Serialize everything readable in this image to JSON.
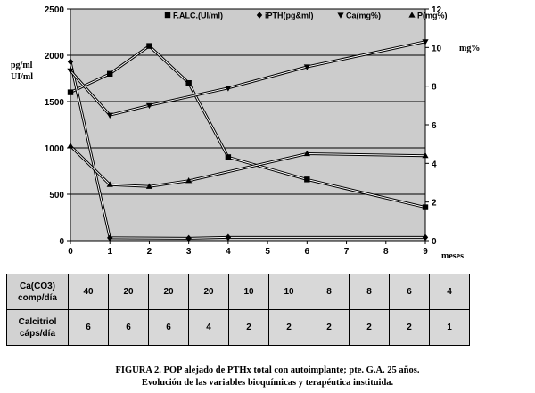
{
  "chart_data": {
    "type": "line",
    "x": [
      0,
      1,
      2,
      3,
      4,
      6,
      9
    ],
    "x_ticks": [
      "0",
      "1",
      "2",
      "3",
      "4",
      "5",
      "6",
      "7",
      "8",
      "9"
    ],
    "xlabel": "meses",
    "xlim": [
      0,
      9
    ],
    "ylabel_left": [
      "pg/ml",
      "UI/ml"
    ],
    "ylabel_right": "mg%",
    "ylim_left": [
      0,
      2500
    ],
    "ylim_right": [
      0,
      12
    ],
    "y_ticks_left": [
      "0",
      "500",
      "1000",
      "1500",
      "2000",
      "2500"
    ],
    "y_ticks_right": [
      "0",
      "2",
      "4",
      "6",
      "8",
      "10",
      "12"
    ],
    "legend_position": "top-right",
    "grid": "horizontal",
    "series": [
      {
        "name": "F.ALC.(UI/ml)",
        "axis": "left",
        "marker": "square",
        "x": [
          0,
          1,
          2,
          3,
          4,
          6,
          9
        ],
        "values": [
          1600,
          1800,
          2100,
          1700,
          900,
          660,
          360
        ]
      },
      {
        "name": "iPTH(pg&ml)",
        "axis": "left",
        "marker": "diamond",
        "x": [
          0,
          1,
          3,
          4,
          9
        ],
        "values": [
          1930,
          30,
          25,
          35,
          35
        ]
      },
      {
        "name": "Ca(mg%)",
        "axis": "right",
        "marker": "triangle-down",
        "x": [
          0,
          1,
          2,
          4,
          6,
          9
        ],
        "values": [
          8.8,
          6.5,
          7.0,
          7.9,
          9.0,
          10.3
        ]
      },
      {
        "name": "P(mg%)",
        "axis": "right",
        "marker": "triangle-up",
        "x": [
          0,
          1,
          2,
          3,
          6,
          9
        ],
        "values": [
          4.9,
          2.9,
          2.8,
          3.1,
          4.5,
          4.4
        ]
      }
    ]
  },
  "table": {
    "rows": [
      {
        "label": [
          "Ca(CO3)",
          "comp/día"
        ],
        "values": [
          "40",
          "20",
          "20",
          "20",
          "10",
          "10",
          "8",
          "8",
          "6",
          "4"
        ]
      },
      {
        "label": [
          "Calcitriol",
          "cáps/día"
        ],
        "values": [
          "6",
          "6",
          "6",
          "4",
          "2",
          "2",
          "2",
          "2",
          "2",
          "1"
        ]
      }
    ]
  },
  "caption": {
    "line1": "FIGURA 2. POP alejado de PTHx total con autoimplante; pte. G.A. 25 años.",
    "line2": "Evolución de las variables bioquímicas y terapéutica instituida."
  }
}
